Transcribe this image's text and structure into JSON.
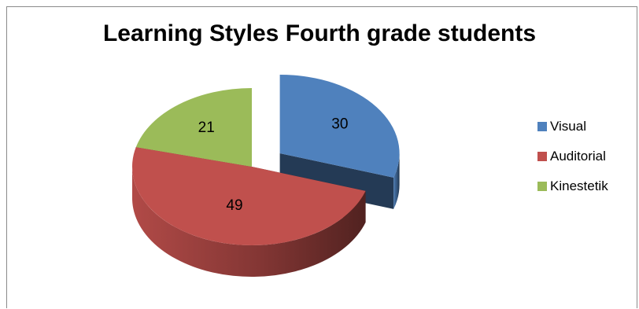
{
  "chart_data": {
    "type": "pie",
    "title": "Learning Styles Fourth grade students",
    "categories": [
      "Visual",
      "Auditorial",
      "Kinestetik"
    ],
    "values": [
      30,
      49,
      21
    ],
    "colors": [
      "#4f81bd",
      "#c0504d",
      "#9bbb59"
    ],
    "data_labels": [
      "30",
      "49",
      "21"
    ],
    "legend_position": "right",
    "style": "3d-exploded"
  }
}
